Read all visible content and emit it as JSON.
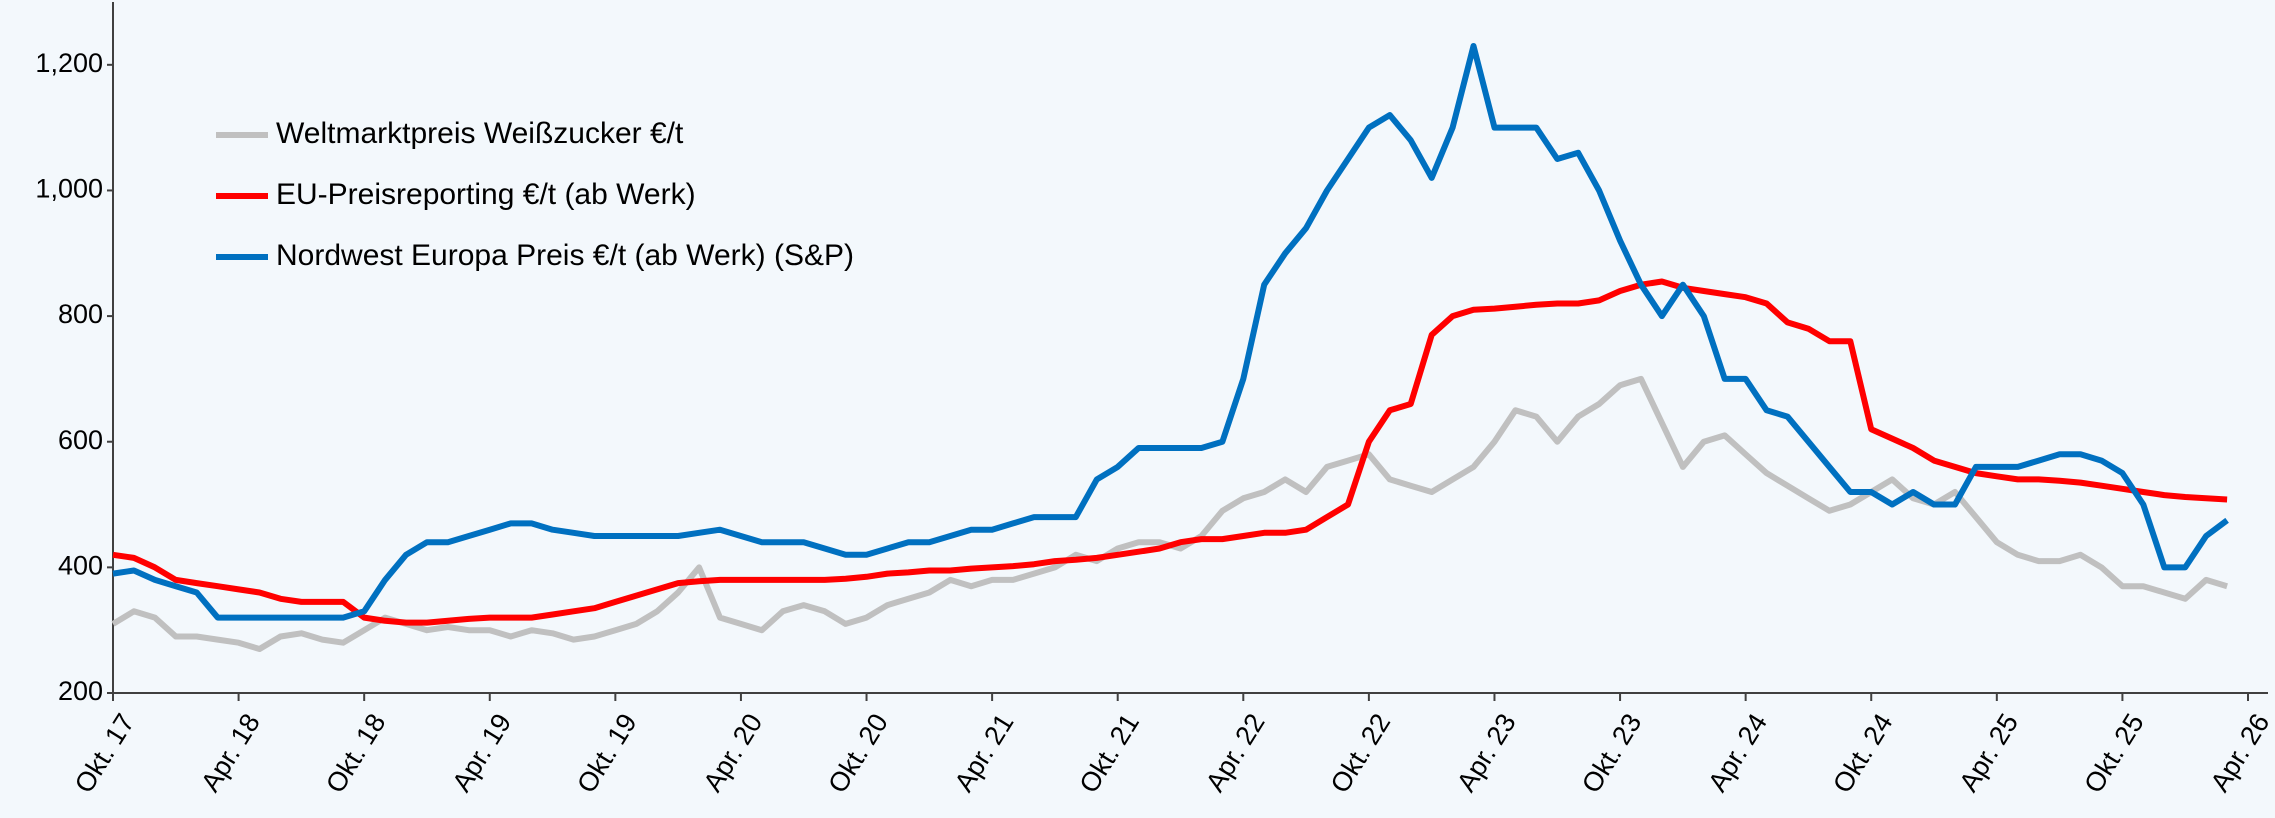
{
  "chart_data": {
    "type": "line",
    "x": [
      "2017-10",
      "2017-11",
      "2017-12",
      "2018-01",
      "2018-02",
      "2018-03",
      "2018-04",
      "2018-05",
      "2018-06",
      "2018-07",
      "2018-08",
      "2018-09",
      "2018-10",
      "2018-11",
      "2018-12",
      "2019-01",
      "2019-02",
      "2019-03",
      "2019-04",
      "2019-05",
      "2019-06",
      "2019-07",
      "2019-08",
      "2019-09",
      "2019-10",
      "2019-11",
      "2019-12",
      "2020-01",
      "2020-02",
      "2020-03",
      "2020-04",
      "2020-05",
      "2020-06",
      "2020-07",
      "2020-08",
      "2020-09",
      "2020-10",
      "2020-11",
      "2020-12",
      "2021-01",
      "2021-02",
      "2021-03",
      "2021-04",
      "2021-05",
      "2021-06",
      "2021-07",
      "2021-08",
      "2021-09",
      "2021-10",
      "2021-11",
      "2021-12",
      "2022-01",
      "2022-02",
      "2022-03",
      "2022-04",
      "2022-05",
      "2022-06",
      "2022-07",
      "2022-08",
      "2022-09",
      "2022-10",
      "2022-11",
      "2022-12",
      "2023-01",
      "2023-02",
      "2023-03",
      "2023-04",
      "2023-05",
      "2023-06",
      "2023-07",
      "2023-08",
      "2023-09",
      "2023-10",
      "2023-11",
      "2023-12",
      "2024-01",
      "2024-02",
      "2024-03",
      "2024-04",
      "2024-05",
      "2024-06",
      "2024-07",
      "2024-08",
      "2024-09",
      "2024-10",
      "2024-11",
      "2024-12",
      "2025-01",
      "2025-02",
      "2025-03",
      "2025-04",
      "2025-05",
      "2025-06",
      "2025-07",
      "2025-08",
      "2025-09",
      "2025-10",
      "2025-11",
      "2025-12",
      "2026-01",
      "2026-02",
      "2026-03"
    ],
    "series": [
      {
        "name": "Weltmarktpreis Weißzucker €/t",
        "color": "#c0c0c0",
        "values": [
          310,
          330,
          320,
          290,
          290,
          285,
          280,
          270,
          290,
          295,
          285,
          280,
          300,
          320,
          310,
          300,
          305,
          300,
          300,
          290,
          300,
          295,
          285,
          290,
          300,
          310,
          330,
          360,
          400,
          320,
          310,
          300,
          330,
          340,
          330,
          310,
          320,
          340,
          350,
          360,
          380,
          370,
          380,
          380,
          390,
          400,
          420,
          410,
          430,
          440,
          440,
          430,
          450,
          490,
          510,
          520,
          540,
          520,
          560,
          570,
          580,
          540,
          530,
          520,
          540,
          560,
          600,
          650,
          640,
          600,
          640,
          660,
          690,
          700,
          630,
          560,
          600,
          610,
          580,
          550,
          530,
          510,
          490,
          500,
          520,
          540,
          510,
          500,
          520,
          480,
          440,
          420,
          410,
          410,
          420,
          400,
          370,
          370,
          360,
          350,
          380,
          370
        ]
      },
      {
        "name": "EU-Preisreporting €/t (ab Werk)",
        "color": "#ff0000",
        "values": [
          420,
          415,
          400,
          380,
          375,
          370,
          365,
          360,
          350,
          345,
          345,
          345,
          320,
          315,
          312,
          312,
          315,
          318,
          320,
          320,
          320,
          325,
          330,
          335,
          345,
          355,
          365,
          375,
          378,
          380,
          380,
          380,
          380,
          380,
          380,
          382,
          385,
          390,
          392,
          395,
          395,
          398,
          400,
          402,
          405,
          410,
          412,
          415,
          420,
          425,
          430,
          440,
          445,
          445,
          450,
          455,
          455,
          460,
          480,
          500,
          600,
          650,
          660,
          770,
          800,
          810,
          812,
          815,
          818,
          820,
          820,
          825,
          840,
          850,
          855,
          845,
          840,
          835,
          830,
          820,
          790,
          780,
          760,
          760,
          620,
          605,
          590,
          570,
          560,
          550,
          545,
          540,
          540,
          538,
          535,
          530,
          525,
          520,
          515,
          512,
          510,
          508
        ]
      },
      {
        "name": "Nordwest Europa Preis €/t (ab Werk) (S&P)",
        "color": "#0070c0",
        "values": [
          390,
          395,
          380,
          370,
          360,
          320,
          320,
          320,
          320,
          320,
          320,
          320,
          330,
          380,
          420,
          440,
          440,
          450,
          460,
          470,
          470,
          460,
          455,
          450,
          450,
          450,
          450,
          450,
          455,
          460,
          450,
          440,
          440,
          440,
          430,
          420,
          420,
          430,
          440,
          440,
          450,
          460,
          460,
          470,
          480,
          480,
          480,
          540,
          560,
          590,
          590,
          590,
          590,
          600,
          700,
          850,
          900,
          940,
          1000,
          1050,
          1100,
          1120,
          1080,
          1020,
          1100,
          1230,
          1100,
          1100,
          1100,
          1050,
          1060,
          1000,
          920,
          850,
          800,
          850,
          800,
          700,
          700,
          650,
          640,
          600,
          560,
          520,
          520,
          500,
          520,
          500,
          500,
          560,
          560,
          560,
          570,
          580,
          580,
          570,
          550,
          500,
          400,
          400,
          450,
          475
        ]
      }
    ],
    "xlim": [
      "2017-10",
      "2026-04"
    ],
    "xticks": [
      {
        "value": "2017-10",
        "label": "Okt. 17"
      },
      {
        "value": "2018-04",
        "label": "Apr. 18"
      },
      {
        "value": "2018-10",
        "label": "Okt. 18"
      },
      {
        "value": "2019-04",
        "label": "Apr. 19"
      },
      {
        "value": "2019-10",
        "label": "Okt. 19"
      },
      {
        "value": "2020-04",
        "label": "Apr. 20"
      },
      {
        "value": "2020-10",
        "label": "Okt. 20"
      },
      {
        "value": "2021-04",
        "label": "Apr. 21"
      },
      {
        "value": "2021-10",
        "label": "Okt. 21"
      },
      {
        "value": "2022-04",
        "label": "Apr. 22"
      },
      {
        "value": "2022-10",
        "label": "Okt. 22"
      },
      {
        "value": "2023-04",
        "label": "Apr. 23"
      },
      {
        "value": "2023-10",
        "label": "Okt. 23"
      },
      {
        "value": "2024-04",
        "label": "Apr. 24"
      },
      {
        "value": "2024-10",
        "label": "Okt. 24"
      },
      {
        "value": "2025-04",
        "label": "Apr. 25"
      },
      {
        "value": "2025-10",
        "label": "Okt. 25"
      },
      {
        "value": "2026-04",
        "label": "Apr. 26"
      }
    ],
    "ylim": [
      200,
      1300
    ],
    "yticks": [
      200,
      400,
      600,
      800,
      {
        "value": 1000,
        "label": "1,000"
      },
      {
        "value": 1200,
        "label": "1,200"
      }
    ],
    "grid": false,
    "legend": "upper-left"
  }
}
